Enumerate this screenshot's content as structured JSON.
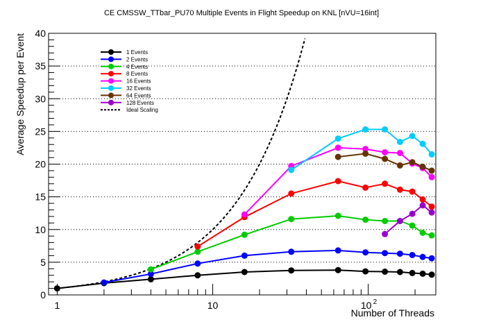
{
  "chart_data": {
    "type": "line",
    "title": "CE CMSSW_TTbar_PU70 Multiple Events in Flight Speedup on KNL [nVU=16int]",
    "xlabel": "Number of Threads",
    "ylabel": "Average Speedup per Event",
    "xscale": "log",
    "xlim": [
      0.88,
      272
    ],
    "ylim": [
      0,
      40
    ],
    "x_tick_labels": [
      "1",
      "10",
      "10",
      "2"
    ],
    "y_ticks": [
      0,
      5,
      10,
      15,
      20,
      25,
      30,
      35,
      40
    ],
    "y_tick_labels": [
      "0",
      "5",
      "10",
      "15",
      "20",
      "25",
      "30",
      "35",
      "40"
    ],
    "grid": "horizontal dotted",
    "legend_placement": "top-left",
    "series": [
      {
        "name": "1 Events",
        "color": "#000000",
        "x": [
          1,
          2,
          4,
          8,
          16,
          32,
          64,
          96,
          128,
          160,
          192,
          224,
          256
        ],
        "y": [
          1.0,
          1.8,
          2.4,
          3.0,
          3.5,
          3.75,
          3.8,
          3.6,
          3.55,
          3.5,
          3.35,
          3.25,
          3.1
        ]
      },
      {
        "name": "2 Events",
        "color": "#0000ff",
        "x": [
          2,
          4,
          8,
          16,
          32,
          64,
          96,
          128,
          160,
          192,
          224,
          256
        ],
        "y": [
          1.9,
          3.2,
          4.8,
          6.0,
          6.6,
          6.8,
          6.5,
          6.4,
          6.3,
          6.1,
          5.8,
          5.6
        ]
      },
      {
        "name": "4 Events",
        "color": "#00cc00",
        "x": [
          4,
          8,
          16,
          32,
          64,
          96,
          128,
          160,
          192,
          224,
          256
        ],
        "y": [
          3.9,
          6.6,
          9.2,
          11.6,
          12.1,
          11.5,
          11.3,
          11.3,
          10.6,
          9.5,
          9.1
        ]
      },
      {
        "name": "8 Events",
        "color": "#ff0000",
        "x": [
          8,
          16,
          32,
          64,
          96,
          128,
          160,
          192,
          224,
          256
        ],
        "y": [
          7.4,
          11.9,
          15.5,
          17.4,
          16.4,
          17.0,
          16.1,
          15.8,
          14.6,
          13.5
        ]
      },
      {
        "name": "16 Events",
        "color": "#ff00ff",
        "x": [
          16,
          32,
          64,
          96,
          128,
          160,
          192,
          224,
          256
        ],
        "y": [
          12.3,
          19.7,
          22.5,
          22.3,
          21.8,
          21.7,
          20.1,
          19.4,
          18.0
        ]
      },
      {
        "name": "32 Events",
        "color": "#00ccff",
        "x": [
          32,
          64,
          96,
          128,
          160,
          192,
          224,
          256
        ],
        "y": [
          19.1,
          23.9,
          25.3,
          25.3,
          23.4,
          24.3,
          23.1,
          21.5
        ]
      },
      {
        "name": "64 Events",
        "color": "#663300",
        "x": [
          64,
          96,
          128,
          160,
          192,
          224,
          256
        ],
        "y": [
          21.1,
          21.6,
          20.8,
          19.8,
          20.3,
          19.6,
          19.0
        ]
      },
      {
        "name": "128 Events",
        "color": "#9900cc",
        "x": [
          128,
          160,
          192,
          224,
          256
        ],
        "y": [
          9.3,
          11.3,
          12.4,
          13.7,
          12.6
        ]
      }
    ],
    "ideal": {
      "name": "Ideal Scaling",
      "color": "#000000",
      "style": "dashed",
      "x": [
        1,
        39.2
      ],
      "y": [
        1,
        39.2
      ]
    }
  }
}
